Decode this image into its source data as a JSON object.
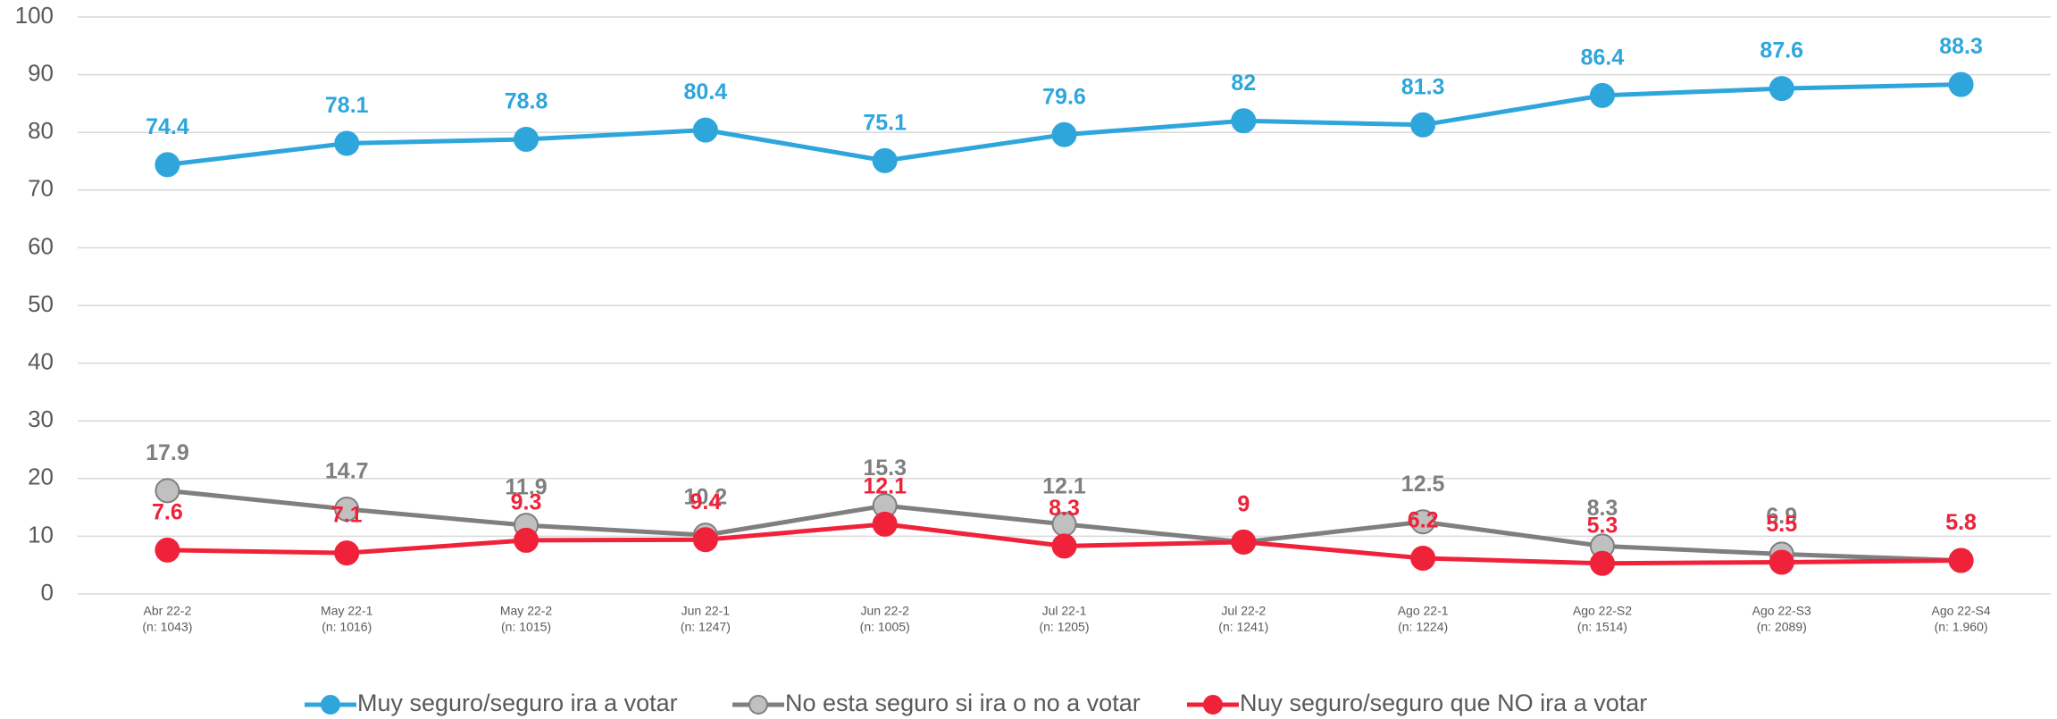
{
  "chart_data": {
    "type": "line",
    "categories": [
      [
        "Abr 22-2",
        "(n: 1043)"
      ],
      [
        "May 22-1",
        "(n: 1016)"
      ],
      [
        "May 22-2",
        "(n: 1015)"
      ],
      [
        "Jun 22-1",
        "(n: 1247)"
      ],
      [
        "Jun 22-2",
        "(n: 1005)"
      ],
      [
        "Jul 22-1",
        "(n: 1205)"
      ],
      [
        "Jul 22-2",
        "(n: 1241)"
      ],
      [
        "Ago 22-1",
        "(n: 1224)"
      ],
      [
        "Ago 22-S2",
        "(n: 1514)"
      ],
      [
        "Ago 22-S3",
        "(n: 2089)"
      ],
      [
        "Ago 22-S4",
        "(n: 1.960)"
      ]
    ],
    "series": [
      {
        "name": "Muy seguro/seguro ira a votar",
        "color": "#2ea6dc",
        "marker_fill": "#2ea6dc",
        "values": [
          74.4,
          78.1,
          78.8,
          80.4,
          75.1,
          79.6,
          82,
          81.3,
          86.4,
          87.6,
          88.3
        ]
      },
      {
        "name": "No esta seguro si ira o no a votar",
        "color": "#7f7f7f",
        "marker_fill": "#c0c0c0",
        "values": [
          17.9,
          14.7,
          11.9,
          10.2,
          15.3,
          12.1,
          9,
          12.5,
          8.3,
          6.9,
          5.8
        ]
      },
      {
        "name": "Nuy seguro/seguro que NO ira a votar",
        "color": "#f0223a",
        "marker_fill": "#f0223a",
        "values": [
          7.6,
          7.1,
          9.3,
          9.4,
          12.1,
          8.3,
          9,
          6.2,
          5.3,
          5.5,
          5.8
        ]
      }
    ],
    "ylim": [
      0,
      100
    ],
    "yticks": [
      0,
      10,
      20,
      30,
      40,
      50,
      60,
      70,
      80,
      90,
      100
    ],
    "grid": true,
    "legend": "bottom"
  }
}
